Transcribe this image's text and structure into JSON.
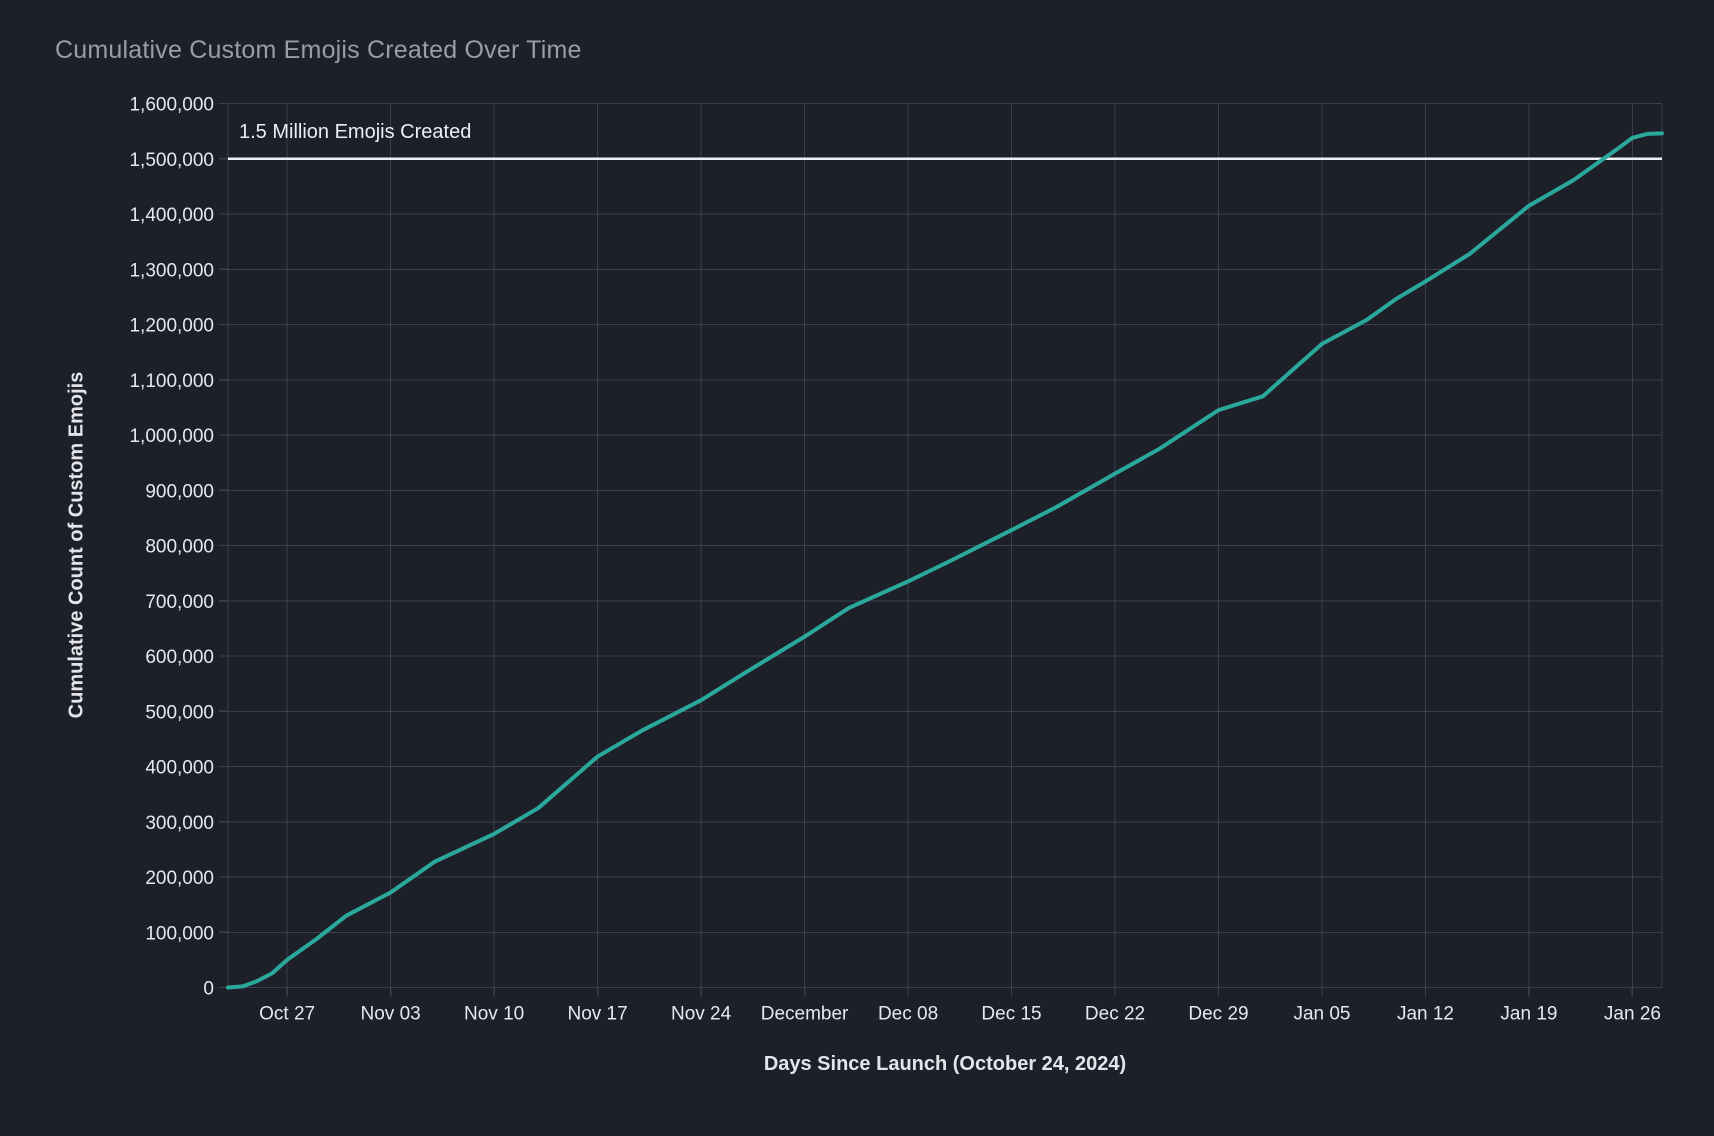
{
  "page": {
    "title": "Cumulative Custom Emojis Created Over Time"
  },
  "chart_data": {
    "type": "line",
    "title": "Cumulative Custom Emojis Created Over Time",
    "xlabel": "Days Since Launch (October 24, 2024)",
    "ylabel": "Cumulative Count of Custom Emojis",
    "xlim": [
      -1,
      96
    ],
    "ylim": [
      0,
      1600000
    ],
    "grid": true,
    "legend": "none",
    "background_color": "#1e2029",
    "grid_color": "#3c3f50",
    "tick_color": "#e7e8ee",
    "title_color": "#9a9caa",
    "x_ticks": [
      {
        "day": 3,
        "label": "Oct 27"
      },
      {
        "day": 10,
        "label": "Nov 03"
      },
      {
        "day": 17,
        "label": "Nov 10"
      },
      {
        "day": 24,
        "label": "Nov 17"
      },
      {
        "day": 31,
        "label": "Nov 24"
      },
      {
        "day": 38,
        "label": "December"
      },
      {
        "day": 45,
        "label": "Dec 08"
      },
      {
        "day": 52,
        "label": "Dec 15"
      },
      {
        "day": 59,
        "label": "Dec 22"
      },
      {
        "day": 66,
        "label": "Dec 29"
      },
      {
        "day": 73,
        "label": "Jan 05"
      },
      {
        "day": 80,
        "label": "Jan 12"
      },
      {
        "day": 87,
        "label": "Jan 19"
      },
      {
        "day": 94,
        "label": "Jan 26"
      }
    ],
    "y_ticks": [
      {
        "value": 0,
        "label": "0"
      },
      {
        "value": 100000,
        "label": "100,000"
      },
      {
        "value": 200000,
        "label": "200,000"
      },
      {
        "value": 300000,
        "label": "300,000"
      },
      {
        "value": 400000,
        "label": "400,000"
      },
      {
        "value": 500000,
        "label": "500,000"
      },
      {
        "value": 600000,
        "label": "600,000"
      },
      {
        "value": 700000,
        "label": "700,000"
      },
      {
        "value": 800000,
        "label": "800,000"
      },
      {
        "value": 900000,
        "label": "900,000"
      },
      {
        "value": 1000000,
        "label": "1,000,000"
      },
      {
        "value": 1100000,
        "label": "1,100,000"
      },
      {
        "value": 1200000,
        "label": "1,200,000"
      },
      {
        "value": 1300000,
        "label": "1,300,000"
      },
      {
        "value": 1400000,
        "label": "1,400,000"
      },
      {
        "value": 1500000,
        "label": "1,500,000"
      },
      {
        "value": 1600000,
        "label": "1,600,000"
      }
    ],
    "reference_line": {
      "value": 1500000,
      "label": "1.5 Million Emojis Created",
      "color": "#eef0f4"
    },
    "series": [
      {
        "name": "Cumulative Custom Emojis",
        "color": "#2ba89c",
        "line_width": 4,
        "points": [
          [
            -1,
            0
          ],
          [
            0,
            2000
          ],
          [
            1,
            12000
          ],
          [
            2,
            26000
          ],
          [
            3,
            50000
          ],
          [
            5,
            88000
          ],
          [
            7,
            130000
          ],
          [
            10,
            172000
          ],
          [
            13,
            228000
          ],
          [
            17,
            278000
          ],
          [
            20,
            325000
          ],
          [
            24,
            418000
          ],
          [
            27,
            465000
          ],
          [
            31,
            520000
          ],
          [
            34,
            570000
          ],
          [
            38,
            635000
          ],
          [
            41,
            687000
          ],
          [
            45,
            735000
          ],
          [
            48,
            774000
          ],
          [
            52,
            828000
          ],
          [
            55,
            869000
          ],
          [
            59,
            930000
          ],
          [
            62,
            975000
          ],
          [
            66,
            1045000
          ],
          [
            69,
            1070000
          ],
          [
            73,
            1165000
          ],
          [
            76,
            1208000
          ],
          [
            78,
            1246000
          ],
          [
            80,
            1278000
          ],
          [
            83,
            1328000
          ],
          [
            87,
            1415000
          ],
          [
            90,
            1461000
          ],
          [
            93,
            1518000
          ],
          [
            94,
            1538000
          ],
          [
            95,
            1545000
          ],
          [
            96,
            1546000
          ]
        ]
      }
    ]
  }
}
